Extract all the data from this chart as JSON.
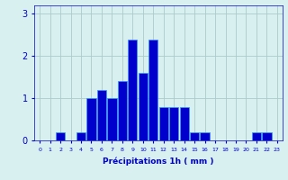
{
  "values": [
    0,
    0,
    0.2,
    0,
    0.2,
    1.0,
    1.2,
    1.0,
    1.4,
    2.4,
    1.6,
    2.4,
    0.8,
    0.8,
    0.8,
    0.2,
    0.2,
    0,
    0,
    0,
    0,
    0.2,
    0.2,
    0
  ],
  "categories": [
    0,
    1,
    2,
    3,
    4,
    5,
    6,
    7,
    8,
    9,
    10,
    11,
    12,
    13,
    14,
    15,
    16,
    17,
    18,
    19,
    20,
    21,
    22,
    23
  ],
  "bar_color": "#0000cc",
  "bar_edge_color": "#3399ff",
  "background_color": "#d8f0f0",
  "grid_color": "#aacccc",
  "xlabel": "Précipitations 1h ( mm )",
  "xlabel_color": "#0000cc",
  "tick_color": "#0000cc",
  "ylim": [
    0,
    3.2
  ],
  "yticks": [
    0,
    1,
    2,
    3
  ],
  "xlim": [
    -0.5,
    23.5
  ],
  "figsize": [
    3.2,
    2.0
  ],
  "dpi": 100
}
